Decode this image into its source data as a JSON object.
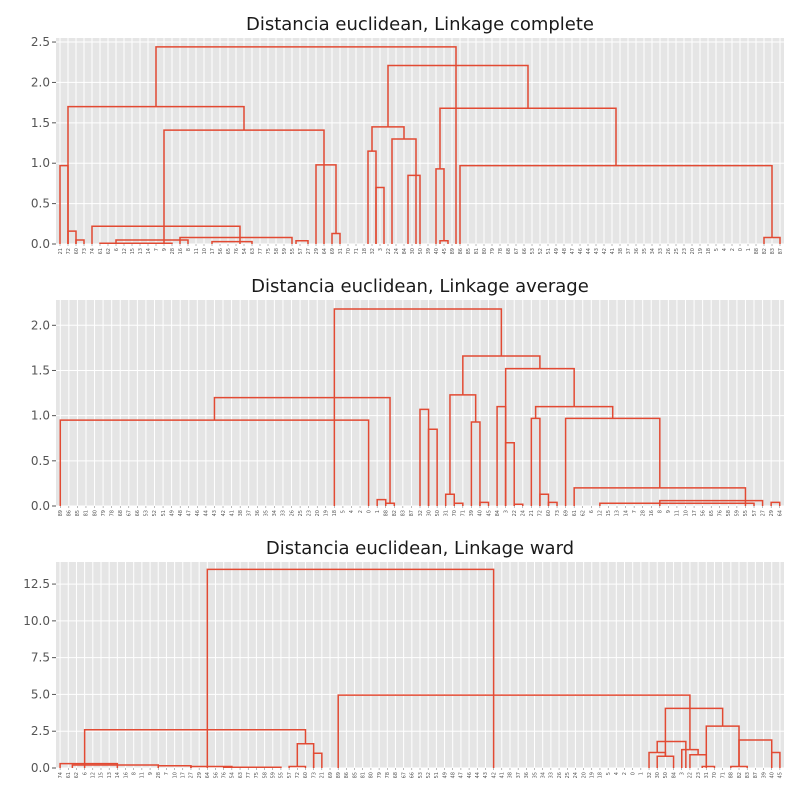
{
  "chart_data": [
    {
      "type": "dendrogram",
      "title": "Distancia euclidean, Linkage complete",
      "ylim": [
        0,
        2.55
      ],
      "yticks": [
        0.0,
        0.5,
        1.0,
        1.5,
        2.0,
        2.5
      ],
      "ytick_labels": [
        "0.0",
        "0.5",
        "1.0",
        "1.5",
        "2.0",
        "2.5"
      ],
      "grid": true,
      "line_color": "#e24a33",
      "leaves": [
        "21",
        "72",
        "60",
        "73",
        "74",
        "61",
        "62",
        "6",
        "12",
        "15",
        "13",
        "14",
        "7",
        "9",
        "28",
        "16",
        "8",
        "11",
        "10",
        "17",
        "56",
        "65",
        "76",
        "54",
        "63",
        "77",
        "75",
        "58",
        "59",
        "55",
        "57",
        "27",
        "29",
        "64",
        "69",
        "31",
        "70",
        "71",
        "18",
        "32",
        "3",
        "22",
        "24",
        "84",
        "30",
        "50",
        "39",
        "40",
        "45",
        "89",
        "86",
        "85",
        "81",
        "80",
        "79",
        "78",
        "68",
        "67",
        "66",
        "53",
        "52",
        "51",
        "49",
        "48",
        "47",
        "46",
        "44",
        "43",
        "42",
        "41",
        "38",
        "37",
        "36",
        "35",
        "34",
        "33",
        "26",
        "25",
        "23",
        "20",
        "19",
        "18",
        "5",
        "4",
        "2",
        "0",
        "1",
        "88",
        "82",
        "83",
        "87"
      ],
      "links": [
        {
          "h": 0.97,
          "a": 0.0,
          "b": 1.0
        },
        {
          "h": 0.16,
          "a": 1.0,
          "b": 2.0
        },
        {
          "h": 0.05,
          "a": 2.0,
          "b": 3.0
        },
        {
          "h": 0.22,
          "a": 4.0,
          "b": 22.5
        },
        {
          "h": 0.05,
          "a": 7.0,
          "b": 16.0
        },
        {
          "h": 0.01,
          "a": 5.0,
          "b": 14.0
        },
        {
          "h": 0.08,
          "a": 15.0,
          "b": 29.0
        },
        {
          "h": 0.03,
          "a": 19.0,
          "b": 24.0
        },
        {
          "h": 0.04,
          "a": 29.5,
          "b": 31.0
        },
        {
          "h": 1.41,
          "a": 13.0,
          "b": 33.0
        },
        {
          "h": 0.98,
          "a": 32.0,
          "b": 34.5
        },
        {
          "h": 0.13,
          "a": 34.0,
          "b": 35.0
        },
        {
          "h": 1.7,
          "a": 1.0,
          "b": 23.0
        },
        {
          "h": 1.15,
          "a": 38.5,
          "b": 39.5
        },
        {
          "h": 0.7,
          "a": 39.5,
          "b": 40.5
        },
        {
          "h": 1.45,
          "a": 39.0,
          "b": 43.0
        },
        {
          "h": 1.3,
          "a": 41.5,
          "b": 44.5
        },
        {
          "h": 0.85,
          "a": 43.5,
          "b": 45.0
        },
        {
          "h": 0.93,
          "a": 47.0,
          "b": 48.0
        },
        {
          "h": 0.04,
          "a": 47.5,
          "b": 48.5
        },
        {
          "h": 0.97,
          "a": 50.0,
          "b": 89.0
        },
        {
          "h": 0.08,
          "a": 88.0,
          "b": 90.0
        },
        {
          "h": 1.68,
          "a": 47.5,
          "b": 69.5
        },
        {
          "h": 2.21,
          "a": 41.0,
          "b": 58.5
        },
        {
          "h": 2.44,
          "a": 12.0,
          "b": 49.5
        }
      ]
    },
    {
      "type": "dendrogram",
      "title": "Distancia euclidean, Linkage average",
      "ylim": [
        0,
        2.28
      ],
      "yticks": [
        0.0,
        0.5,
        1.0,
        1.5,
        2.0
      ],
      "ytick_labels": [
        "0.0",
        "0.5",
        "1.0",
        "1.5",
        "2.0"
      ],
      "grid": true,
      "line_color": "#e24a33",
      "leaves": [
        "89",
        "86",
        "85",
        "81",
        "80",
        "79",
        "78",
        "68",
        "67",
        "66",
        "53",
        "52",
        "51",
        "49",
        "48",
        "47",
        "46",
        "44",
        "43",
        "42",
        "41",
        "38",
        "37",
        "36",
        "35",
        "34",
        "33",
        "26",
        "25",
        "23",
        "20",
        "19",
        "18",
        "5",
        "4",
        "2",
        "0",
        "1",
        "88",
        "82",
        "83",
        "87",
        "32",
        "30",
        "50",
        "31",
        "70",
        "71",
        "39",
        "40",
        "45",
        "84",
        "3",
        "22",
        "24",
        "21",
        "72",
        "60",
        "73",
        "69",
        "61",
        "62",
        "6",
        "12",
        "15",
        "13",
        "14",
        "7",
        "28",
        "16",
        "8",
        "9",
        "11",
        "10",
        "17",
        "56",
        "65",
        "76",
        "58",
        "59",
        "55",
        "57",
        "27",
        "29",
        "64"
      ],
      "links": [
        {
          "h": 0.95,
          "a": 0.0,
          "b": 36.0
        },
        {
          "h": 0.07,
          "a": 37.0,
          "b": 38.0
        },
        {
          "h": 0.03,
          "a": 38.0,
          "b": 39.0
        },
        {
          "h": 1.2,
          "a": 18.0,
          "b": 38.5
        },
        {
          "h": 1.07,
          "a": 42.0,
          "b": 43.0
        },
        {
          "h": 0.85,
          "a": 43.0,
          "b": 44.0
        },
        {
          "h": 0.13,
          "a": 45.0,
          "b": 46.0
        },
        {
          "h": 0.03,
          "a": 46.0,
          "b": 47.0
        },
        {
          "h": 0.93,
          "a": 48.0,
          "b": 49.0
        },
        {
          "h": 0.04,
          "a": 49.0,
          "b": 50.0
        },
        {
          "h": 1.23,
          "a": 45.5,
          "b": 48.5
        },
        {
          "h": 1.1,
          "a": 51.0,
          "b": 52.0
        },
        {
          "h": 0.7,
          "a": 52.0,
          "b": 53.0
        },
        {
          "h": 0.02,
          "a": 53.0,
          "b": 54.0
        },
        {
          "h": 0.97,
          "a": 55.0,
          "b": 56.0
        },
        {
          "h": 0.13,
          "a": 56.0,
          "b": 57.0
        },
        {
          "h": 0.04,
          "a": 57.0,
          "b": 58.0
        },
        {
          "h": 0.2,
          "a": 60.0,
          "b": 80.0
        },
        {
          "h": 0.03,
          "a": 63.0,
          "b": 81.0
        },
        {
          "h": 0.06,
          "a": 70.0,
          "b": 82.0
        },
        {
          "h": 0.04,
          "a": 83.0,
          "b": 84.0
        },
        {
          "h": 0.97,
          "a": 59.0,
          "b": 70.0
        },
        {
          "h": 1.1,
          "a": 55.5,
          "b": 64.5
        },
        {
          "h": 1.52,
          "a": 52.0,
          "b": 60.0
        },
        {
          "h": 1.66,
          "a": 47.0,
          "b": 56.0
        },
        {
          "h": 2.18,
          "a": 32.0,
          "b": 51.5
        }
      ]
    },
    {
      "type": "dendrogram",
      "title": "Distancia euclidean, Linkage ward",
      "ylim": [
        0,
        14.0
      ],
      "yticks": [
        0.0,
        2.5,
        5.0,
        7.5,
        10.0,
        12.5
      ],
      "ytick_labels": [
        "0.0",
        "2.5",
        "5.0",
        "7.5",
        "10.0",
        "12.5"
      ],
      "grid": true,
      "line_color": "#e24a33",
      "leaves": [
        "74",
        "61",
        "62",
        "6",
        "12",
        "15",
        "13",
        "14",
        "16",
        "8",
        "11",
        "9",
        "28",
        "7",
        "10",
        "17",
        "27",
        "29",
        "64",
        "56",
        "76",
        "54",
        "63",
        "77",
        "75",
        "58",
        "59",
        "55",
        "57",
        "72",
        "60",
        "73",
        "21",
        "69",
        "89",
        "86",
        "85",
        "81",
        "80",
        "79",
        "78",
        "68",
        "67",
        "66",
        "53",
        "52",
        "51",
        "49",
        "48",
        "47",
        "46",
        "44",
        "43",
        "42",
        "41",
        "38",
        "37",
        "36",
        "35",
        "34",
        "33",
        "26",
        "25",
        "24",
        "20",
        "19",
        "18",
        "5",
        "4",
        "2",
        "0",
        "1",
        "32",
        "30",
        "50",
        "84",
        "3",
        "22",
        "23",
        "31",
        "70",
        "71",
        "88",
        "82",
        "83",
        "87",
        "39",
        "40",
        "45"
      ],
      "links": [
        {
          "h": 0.3,
          "a": 0.0,
          "b": 7.0
        },
        {
          "h": 0.2,
          "a": 1.5,
          "b": 12.0
        },
        {
          "h": 0.15,
          "a": 12.0,
          "b": 16.0
        },
        {
          "h": 0.1,
          "a": 16.0,
          "b": 21.0
        },
        {
          "h": 0.05,
          "a": 20.0,
          "b": 27.0
        },
        {
          "h": 2.6,
          "a": 3.0,
          "b": 30.0
        },
        {
          "h": 1.65,
          "a": 29.0,
          "b": 31.0
        },
        {
          "h": 0.1,
          "a": 28.0,
          "b": 30.0
        },
        {
          "h": 1.0,
          "a": 31.0,
          "b": 32.0
        },
        {
          "h": 13.5,
          "a": 18.0,
          "b": 53.0
        },
        {
          "h": 4.95,
          "a": 34.0,
          "b": 77.0
        },
        {
          "h": 4.05,
          "a": 74.0,
          "b": 81.0
        },
        {
          "h": 1.8,
          "a": 73.0,
          "b": 76.5
        },
        {
          "h": 1.05,
          "a": 72.0,
          "b": 74.0
        },
        {
          "h": 0.8,
          "a": 73.0,
          "b": 75.0
        },
        {
          "h": 1.25,
          "a": 76.0,
          "b": 78.0
        },
        {
          "h": 0.9,
          "a": 77.0,
          "b": 79.0
        },
        {
          "h": 2.85,
          "a": 79.0,
          "b": 83.0
        },
        {
          "h": 0.1,
          "a": 78.5,
          "b": 80.0
        },
        {
          "h": 1.9,
          "a": 83.0,
          "b": 87.0
        },
        {
          "h": 0.1,
          "a": 82.0,
          "b": 84.0
        },
        {
          "h": 1.05,
          "a": 87.0,
          "b": 88.0
        }
      ]
    }
  ]
}
